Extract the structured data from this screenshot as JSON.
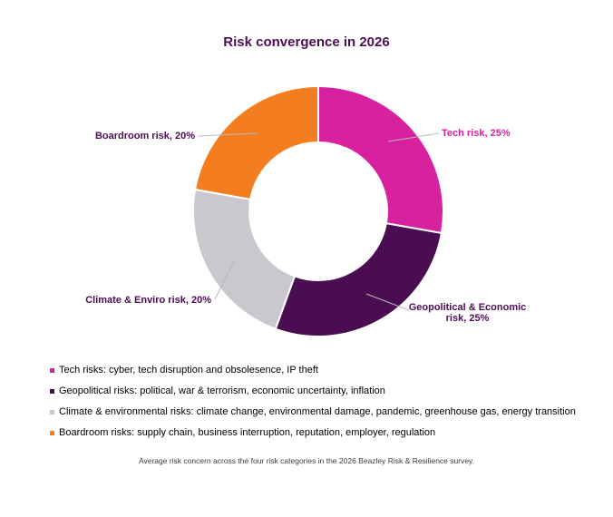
{
  "chart_data": {
    "type": "pie",
    "subtype": "donut",
    "title": "Risk convergence in 2026",
    "direction": "clockwise",
    "start_angle_deg": 0,
    "unit": "%",
    "segments": [
      {
        "label": "Tech risk",
        "value": 25,
        "callout": "Tech risk, 25%",
        "color": "#d7219e"
      },
      {
        "label": "Geopolitical & Economic risk",
        "value": 25,
        "callout": "Geopolitical & Economic risk, 25%",
        "color": "#4a0d52"
      },
      {
        "label": "Climate & Enviro risk",
        "value": 20,
        "callout": "Climate & Enviro risk, 20%",
        "color": "#cbc7ce"
      },
      {
        "label": "Boardroom risk",
        "value": 20,
        "callout": "Boardroom risk, 20%",
        "color": "#f47d20"
      }
    ],
    "legend_position": "bottom-left"
  },
  "legend": {
    "items": [
      {
        "color": "#d7219e",
        "text": "Tech risks: cyber, tech disruption and obsolesence, IP theft"
      },
      {
        "color": "#4a0d52",
        "text": "Geopolitical risks: political, war & terrorism, economic uncertainty, inflation"
      },
      {
        "color": "#cbc7ce",
        "text": "Climate & environmental risks: climate change, environmental damage, pandemic, greenhouse gas, energy transition"
      },
      {
        "color": "#f47d20",
        "text": "Boardroom risks: supply chain, business interruption, reputation, employer, regulation"
      }
    ]
  },
  "caption": "Average risk concern across the four risk categories in the 2026 Beazley Risk & Resilience survey.",
  "colors": {
    "title_text": "#4b0e55",
    "callout_text": "#4b0e55",
    "callout_tech_text": "#d7219e",
    "leader_line": "#b9b9b9",
    "background": "#ffffff"
  }
}
